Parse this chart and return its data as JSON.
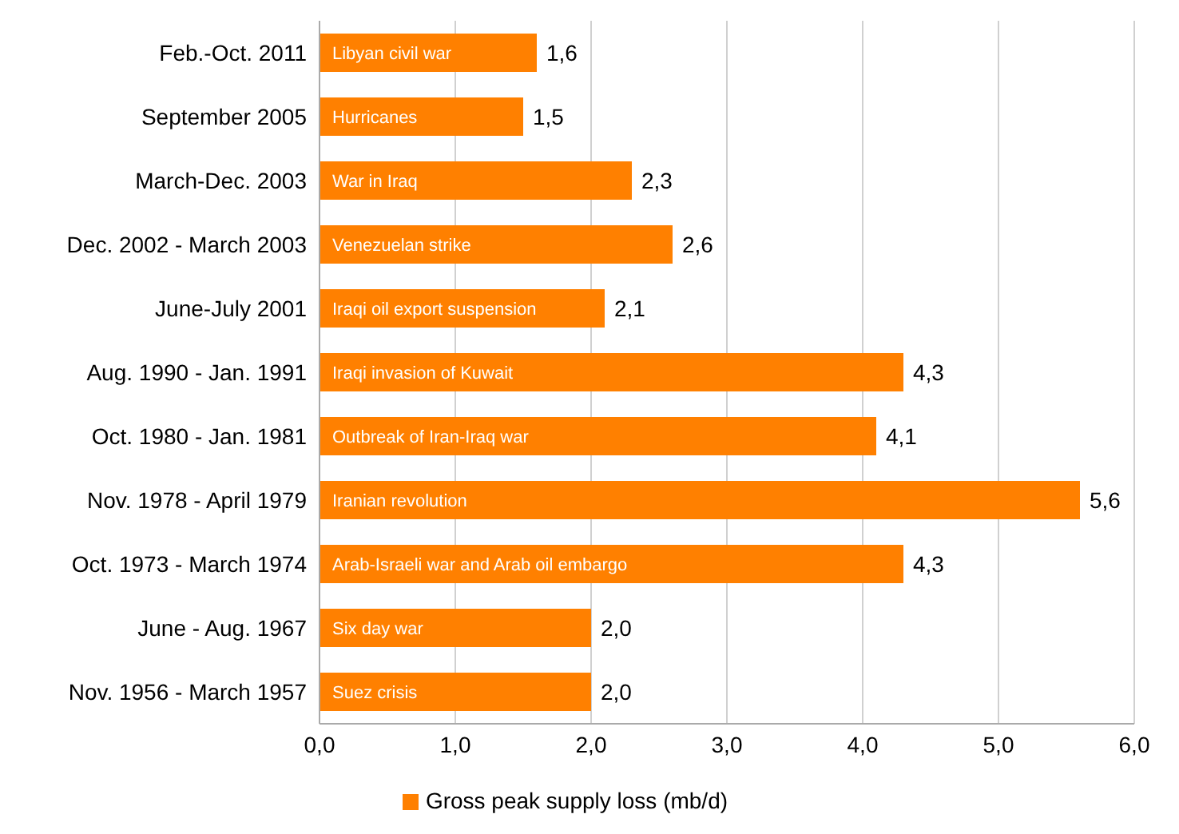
{
  "chart_data": {
    "type": "bar",
    "orientation": "horizontal",
    "categories": [
      "Feb.-Oct. 2011",
      "September 2005",
      "March-Dec. 2003",
      "Dec. 2002 - March 2003",
      "June-July 2001",
      "Aug. 1990 - Jan. 1991",
      "Oct. 1980 - Jan. 1981",
      "Nov. 1978 - April 1979",
      "Oct. 1973 - March 1974",
      "June - Aug. 1967",
      "Nov. 1956 - March 1957"
    ],
    "series": [
      {
        "name": "Gross peak supply loss (mb/d)",
        "color": "#ff8000",
        "values": [
          1.6,
          1.5,
          2.3,
          2.6,
          2.1,
          4.3,
          4.1,
          5.6,
          4.3,
          2.0,
          2.0
        ],
        "value_labels": [
          "1,6",
          "1,5",
          "2,3",
          "2,6",
          "2,1",
          "4,3",
          "4,1",
          "5,6",
          "4,3",
          "2,0",
          "2,0"
        ]
      }
    ],
    "annotations": [
      {
        "text": "Libyan civil war",
        "y": "Feb.-Oct. 2011"
      },
      {
        "text": "Hurricanes",
        "y": "September 2005"
      },
      {
        "text": "War in Iraq",
        "y": "March-Dec. 2003"
      },
      {
        "text": "Venezuelan strike",
        "y": "Dec. 2002 - March 2003"
      },
      {
        "text": "Iraqi oil export suspension",
        "y": "June-July 2001"
      },
      {
        "text": "Iraqi invasion of Kuwait",
        "y": "Aug. 1990 - Jan. 1991"
      },
      {
        "text": "Outbreak of Iran-Iraq war",
        "y": "Oct. 1980 - Jan. 1981"
      },
      {
        "text": "Iranian revolution",
        "y": "Nov. 1978 - April 1979"
      },
      {
        "text": "Arab-Israeli war and Arab oil embargo",
        "y": "Oct. 1973 - March 1974"
      },
      {
        "text": "Six day war",
        "y": "June - Aug. 1967"
      },
      {
        "text": "Suez crisis",
        "y": "Nov. 1956 - March 1957"
      }
    ],
    "xlim": [
      0,
      6
    ],
    "xticks": [
      {
        "value": 0,
        "label": "0,0"
      },
      {
        "value": 1,
        "label": "1,0"
      },
      {
        "value": 2,
        "label": "2,0"
      },
      {
        "value": 3,
        "label": "3,0"
      },
      {
        "value": 4,
        "label": "4,0"
      },
      {
        "value": 5,
        "label": "5,0"
      },
      {
        "value": 6,
        "label": "6,0"
      }
    ],
    "grid": "x",
    "legend": "bottom"
  }
}
